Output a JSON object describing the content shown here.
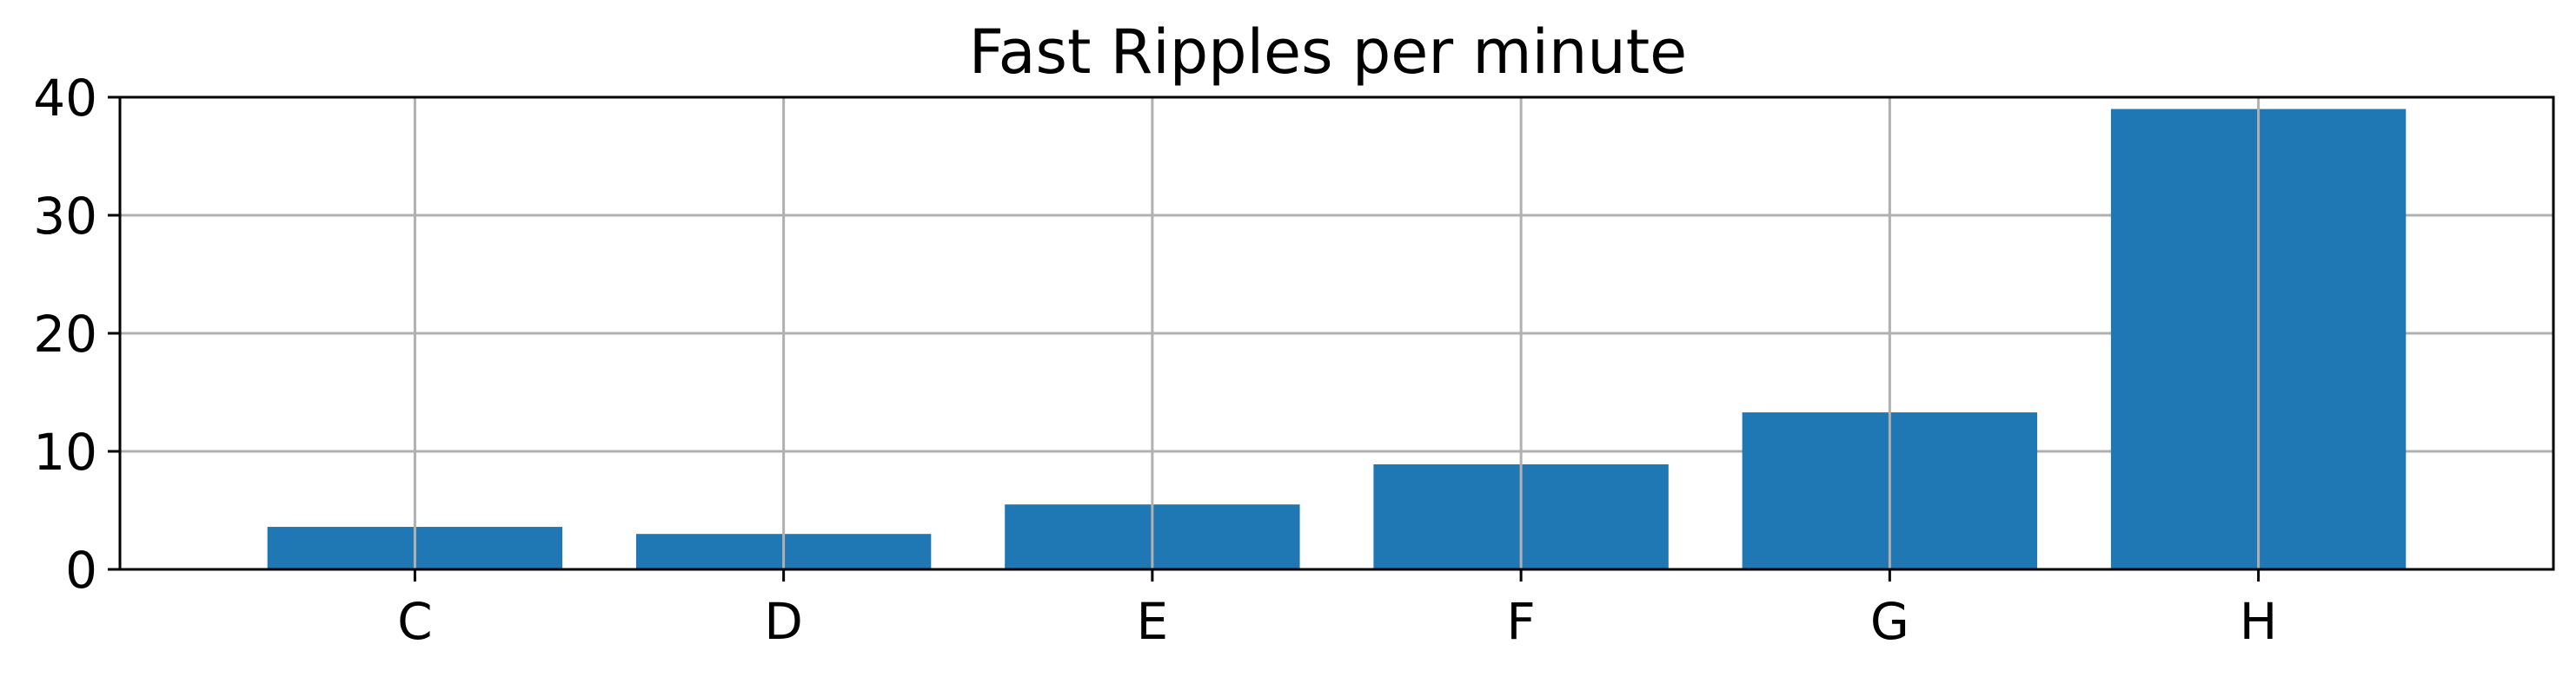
{
  "chart_data": {
    "type": "bar",
    "title": "Fast Ripples per minute",
    "xlabel": "",
    "ylabel": "",
    "categories": [
      "C",
      "D",
      "E",
      "F",
      "G",
      "H"
    ],
    "values": [
      3.6,
      3.0,
      5.5,
      8.9,
      13.3,
      39.0
    ],
    "ylim": [
      0,
      40
    ],
    "yticks": [
      0,
      10,
      20,
      30,
      40
    ],
    "grid": true,
    "bar_color": "#1f77b4"
  }
}
